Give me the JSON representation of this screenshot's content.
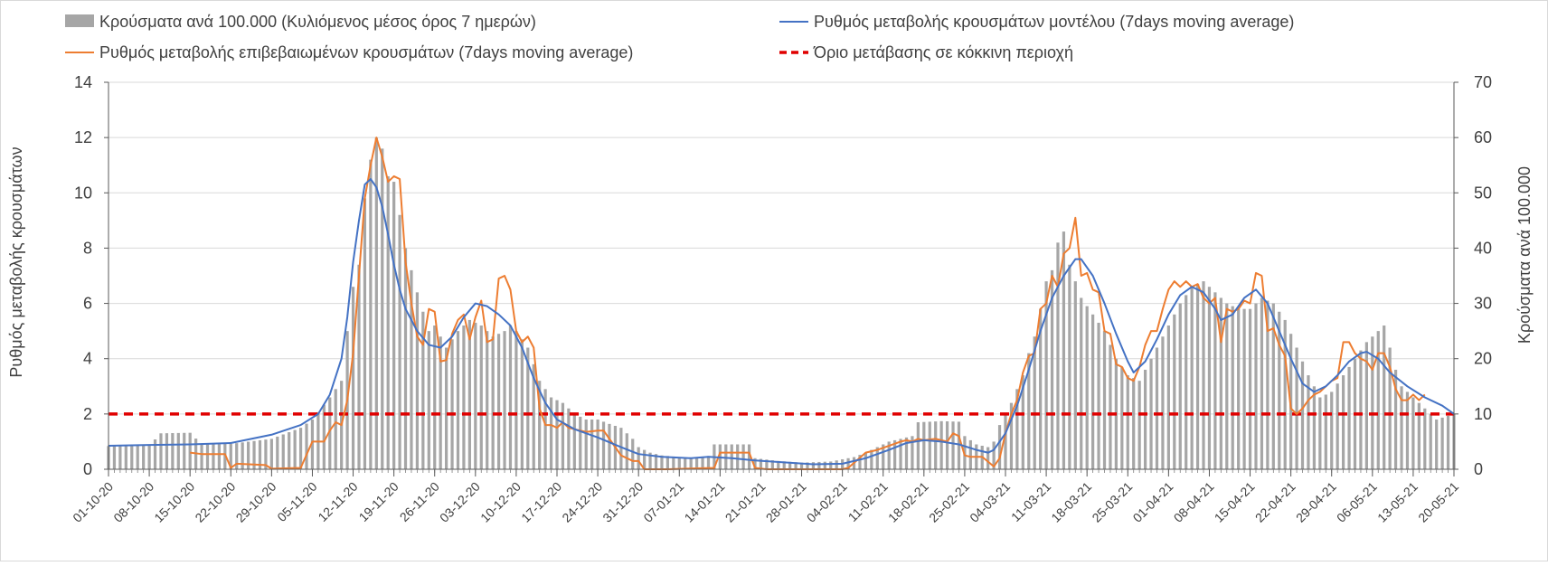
{
  "chart_data": {
    "type": "bar+line",
    "legend": [
      {
        "key": "bars",
        "label": "Κρούσματα ανά 100.000 (Κυλιόμενος μέσος όρος 7 ημερών)",
        "color": "#a6a6a6"
      },
      {
        "key": "model",
        "label": "Ρυθμός μεταβολής κρουσμάτων μοντέλου (7days moving average)",
        "color": "#4472c4"
      },
      {
        "key": "confirmed",
        "label": "Ρυθμός μεταβολής επιβεβαιωμένων κρουσμάτων (7days moving average)",
        "color": "#ed7d31"
      },
      {
        "key": "threshold",
        "label": "Όριο μετάβασης σε κόκκινη περιοχή",
        "color": "#e00000"
      }
    ],
    "ylabel_left": "Ρυθμός μεταβολής κρουσμάτων",
    "ylabel_right": "Κρούσματα ανά 100.000",
    "ylim_left": [
      0,
      14
    ],
    "ylim_right": [
      0,
      70
    ],
    "yticks_left": [
      "0",
      "2",
      "4",
      "6",
      "8",
      "10",
      "12",
      "14"
    ],
    "yticks_right": [
      "0",
      "10",
      "20",
      "30",
      "40",
      "50",
      "60",
      "70"
    ],
    "x_range_days": [
      0,
      231
    ],
    "x_ticks": [
      {
        "day": 0,
        "label": "01-10-20"
      },
      {
        "day": 7,
        "label": "08-10-20"
      },
      {
        "day": 14,
        "label": "15-10-20"
      },
      {
        "day": 21,
        "label": "22-10-20"
      },
      {
        "day": 28,
        "label": "29-10-20"
      },
      {
        "day": 35,
        "label": "05-11-20"
      },
      {
        "day": 42,
        "label": "12-11-20"
      },
      {
        "day": 49,
        "label": "19-11-20"
      },
      {
        "day": 56,
        "label": "26-11-20"
      },
      {
        "day": 63,
        "label": "03-12-20"
      },
      {
        "day": 70,
        "label": "10-12-20"
      },
      {
        "day": 77,
        "label": "17-12-20"
      },
      {
        "day": 84,
        "label": "24-12-20"
      },
      {
        "day": 91,
        "label": "31-12-20"
      },
      {
        "day": 98,
        "label": "07-01-21"
      },
      {
        "day": 105,
        "label": "14-01-21"
      },
      {
        "day": 112,
        "label": "21-01-21"
      },
      {
        "day": 119,
        "label": "28-01-21"
      },
      {
        "day": 126,
        "label": "04-02-21"
      },
      {
        "day": 133,
        "label": "11-02-21"
      },
      {
        "day": 140,
        "label": "18-02-21"
      },
      {
        "day": 147,
        "label": "25-02-21"
      },
      {
        "day": 154,
        "label": "04-03-21"
      },
      {
        "day": 161,
        "label": "11-03-21"
      },
      {
        "day": 168,
        "label": "18-03-21"
      },
      {
        "day": 175,
        "label": "25-03-21"
      },
      {
        "day": 182,
        "label": "01-04-21"
      },
      {
        "day": 189,
        "label": "08-04-21"
      },
      {
        "day": 196,
        "label": "15-04-21"
      },
      {
        "day": 203,
        "label": "22-04-21"
      },
      {
        "day": 210,
        "label": "29-04-21"
      },
      {
        "day": 217,
        "label": "06-05-21"
      },
      {
        "day": 224,
        "label": "13-05-21"
      },
      {
        "day": 231,
        "label": "20-05-21"
      }
    ],
    "threshold": 2,
    "series_bars_per100k": [
      [
        0,
        4.2
      ],
      [
        7,
        4.3
      ],
      [
        9,
        6.5
      ],
      [
        14,
        6.6
      ],
      [
        16,
        4.5
      ],
      [
        21,
        4.6
      ],
      [
        28,
        5.5
      ],
      [
        33,
        7.5
      ],
      [
        35,
        9
      ],
      [
        38,
        13
      ],
      [
        40,
        16
      ],
      [
        41,
        25
      ],
      [
        42,
        33
      ],
      [
        43,
        37
      ],
      [
        44,
        49
      ],
      [
        45,
        56
      ],
      [
        46,
        60
      ],
      [
        47,
        58
      ],
      [
        48,
        53
      ],
      [
        49,
        52
      ],
      [
        51,
        40
      ],
      [
        53,
        32
      ],
      [
        55,
        25
      ],
      [
        56,
        26
      ],
      [
        58,
        22
      ],
      [
        60,
        25
      ],
      [
        62,
        27
      ],
      [
        64,
        26
      ],
      [
        66,
        24
      ],
      [
        68,
        25
      ],
      [
        69,
        26
      ],
      [
        70,
        25
      ],
      [
        72,
        22
      ],
      [
        74,
        16
      ],
      [
        76,
        13
      ],
      [
        78,
        12
      ],
      [
        80,
        10
      ],
      [
        82,
        9
      ],
      [
        84,
        9
      ],
      [
        86,
        8.2
      ],
      [
        88,
        7.5
      ],
      [
        90,
        5.5
      ],
      [
        91,
        4
      ],
      [
        93,
        3
      ],
      [
        95,
        2.5
      ],
      [
        98,
        2.2
      ],
      [
        100,
        2
      ],
      [
        103,
        2.4
      ],
      [
        104,
        4.5
      ],
      [
        110,
        4.5
      ],
      [
        111,
        2
      ],
      [
        115,
        1.5
      ],
      [
        119,
        1.2
      ],
      [
        124,
        1.4
      ],
      [
        126,
        1.8
      ],
      [
        128,
        2.2
      ],
      [
        130,
        3
      ],
      [
        132,
        4
      ],
      [
        134,
        5
      ],
      [
        136,
        5.5
      ],
      [
        138,
        6
      ],
      [
        139,
        8.5
      ],
      [
        143,
        8.7
      ],
      [
        146,
        8.6
      ],
      [
        147,
        6
      ],
      [
        149,
        4.5
      ],
      [
        151,
        4
      ],
      [
        152,
        5
      ],
      [
        153,
        8
      ],
      [
        155,
        12
      ],
      [
        157,
        17
      ],
      [
        158,
        21
      ],
      [
        159,
        24
      ],
      [
        160,
        29
      ],
      [
        161,
        34
      ],
      [
        162,
        36
      ],
      [
        163,
        41
      ],
      [
        164,
        43
      ],
      [
        165,
        37
      ],
      [
        166,
        34
      ],
      [
        167,
        31
      ],
      [
        169,
        28
      ],
      [
        171,
        25
      ],
      [
        173,
        20
      ],
      [
        175,
        17
      ],
      [
        177,
        16
      ],
      [
        178,
        18
      ],
      [
        180,
        22
      ],
      [
        182,
        26
      ],
      [
        184,
        30
      ],
      [
        186,
        33
      ],
      [
        188,
        34
      ],
      [
        190,
        32
      ],
      [
        192,
        30
      ],
      [
        194,
        29
      ],
      [
        196,
        29
      ],
      [
        198,
        31
      ],
      [
        200,
        30
      ],
      [
        202,
        27
      ],
      [
        204,
        22
      ],
      [
        206,
        17
      ],
      [
        208,
        13
      ],
      [
        210,
        14
      ],
      [
        212,
        17
      ],
      [
        214,
        20
      ],
      [
        216,
        23
      ],
      [
        218,
        25
      ],
      [
        219,
        26
      ],
      [
        220,
        22
      ],
      [
        221,
        18
      ],
      [
        222,
        15
      ],
      [
        224,
        13
      ],
      [
        226,
        11
      ],
      [
        228,
        9
      ],
      [
        231,
        10
      ]
    ],
    "series_model_rate": [
      [
        0,
        0.85
      ],
      [
        7,
        0.88
      ],
      [
        14,
        0.9
      ],
      [
        21,
        0.95
      ],
      [
        28,
        1.25
      ],
      [
        33,
        1.6
      ],
      [
        36,
        2.0
      ],
      [
        38,
        2.7
      ],
      [
        40,
        4.0
      ],
      [
        41,
        5.5
      ],
      [
        42,
        7.5
      ],
      [
        43,
        9.0
      ],
      [
        44,
        10.3
      ],
      [
        45,
        10.5
      ],
      [
        46,
        10.2
      ],
      [
        47,
        9.5
      ],
      [
        48,
        8.5
      ],
      [
        49,
        7.4
      ],
      [
        50,
        6.5
      ],
      [
        51,
        5.8
      ],
      [
        53,
        5.0
      ],
      [
        55,
        4.5
      ],
      [
        57,
        4.4
      ],
      [
        59,
        4.8
      ],
      [
        61,
        5.5
      ],
      [
        63,
        6.0
      ],
      [
        65,
        5.9
      ],
      [
        67,
        5.6
      ],
      [
        69,
        5.2
      ],
      [
        71,
        4.4
      ],
      [
        73,
        3.3
      ],
      [
        75,
        2.4
      ],
      [
        77,
        1.8
      ],
      [
        80,
        1.45
      ],
      [
        84,
        1.15
      ],
      [
        88,
        0.8
      ],
      [
        91,
        0.55
      ],
      [
        95,
        0.45
      ],
      [
        100,
        0.4
      ],
      [
        103,
        0.45
      ],
      [
        107,
        0.4
      ],
      [
        111,
        0.32
      ],
      [
        116,
        0.25
      ],
      [
        121,
        0.18
      ],
      [
        126,
        0.2
      ],
      [
        130,
        0.4
      ],
      [
        134,
        0.7
      ],
      [
        137,
        0.95
      ],
      [
        140,
        1.05
      ],
      [
        143,
        1.0
      ],
      [
        146,
        0.9
      ],
      [
        149,
        0.7
      ],
      [
        151,
        0.6
      ],
      [
        152,
        0.7
      ],
      [
        154,
        1.3
      ],
      [
        156,
        2.3
      ],
      [
        158,
        3.6
      ],
      [
        160,
        5.0
      ],
      [
        162,
        6.2
      ],
      [
        164,
        7.0
      ],
      [
        166,
        7.6
      ],
      [
        167,
        7.6
      ],
      [
        169,
        7.0
      ],
      [
        171,
        6.0
      ],
      [
        173,
        4.9
      ],
      [
        175,
        3.9
      ],
      [
        176,
        3.5
      ],
      [
        178,
        3.9
      ],
      [
        180,
        4.7
      ],
      [
        182,
        5.6
      ],
      [
        184,
        6.3
      ],
      [
        186,
        6.6
      ],
      [
        188,
        6.4
      ],
      [
        190,
        5.8
      ],
      [
        191,
        5.4
      ],
      [
        193,
        5.6
      ],
      [
        195,
        6.2
      ],
      [
        197,
        6.5
      ],
      [
        199,
        6.0
      ],
      [
        201,
        5.0
      ],
      [
        203,
        4.0
      ],
      [
        205,
        3.1
      ],
      [
        207,
        2.8
      ],
      [
        209,
        3.0
      ],
      [
        211,
        3.4
      ],
      [
        213,
        3.9
      ],
      [
        215,
        4.2
      ],
      [
        216,
        4.25
      ],
      [
        218,
        4.0
      ],
      [
        220,
        3.5
      ],
      [
        223,
        3.0
      ],
      [
        226,
        2.6
      ],
      [
        229,
        2.3
      ],
      [
        231,
        2.0
      ]
    ],
    "series_confirmed_rate": [
      [
        14,
        0.6
      ],
      [
        16,
        0.55
      ],
      [
        17,
        0.55
      ],
      [
        20,
        0.55
      ],
      [
        21,
        0.05
      ],
      [
        22,
        0.2
      ],
      [
        27,
        0.15
      ],
      [
        28,
        0.02
      ],
      [
        33,
        0.05
      ],
      [
        35,
        1.0
      ],
      [
        36,
        1.0
      ],
      [
        37,
        1.0
      ],
      [
        38,
        1.4
      ],
      [
        39,
        1.7
      ],
      [
        40,
        1.6
      ],
      [
        41,
        2.5
      ],
      [
        42,
        4.2
      ],
      [
        43,
        7.0
      ],
      [
        44,
        9.8
      ],
      [
        45,
        11.0
      ],
      [
        46,
        12.0
      ],
      [
        47,
        11.3
      ],
      [
        48,
        10.4
      ],
      [
        49,
        10.6
      ],
      [
        50,
        10.5
      ],
      [
        51,
        7.5
      ],
      [
        52,
        6.0
      ],
      [
        53,
        4.8
      ],
      [
        54,
        4.5
      ],
      [
        55,
        5.8
      ],
      [
        56,
        5.7
      ],
      [
        57,
        3.9
      ],
      [
        58,
        3.95
      ],
      [
        59,
        4.9
      ],
      [
        60,
        5.4
      ],
      [
        61,
        5.6
      ],
      [
        62,
        4.7
      ],
      [
        63,
        5.5
      ],
      [
        64,
        6.1
      ],
      [
        65,
        4.6
      ],
      [
        66,
        4.7
      ],
      [
        67,
        6.9
      ],
      [
        68,
        7.0
      ],
      [
        69,
        6.5
      ],
      [
        70,
        5.0
      ],
      [
        71,
        4.6
      ],
      [
        72,
        4.8
      ],
      [
        73,
        4.4
      ],
      [
        74,
        2.2
      ],
      [
        75,
        1.6
      ],
      [
        76,
        1.6
      ],
      [
        77,
        1.5
      ],
      [
        78,
        1.7
      ],
      [
        79,
        1.5
      ],
      [
        80,
        1.45
      ],
      [
        82,
        1.35
      ],
      [
        84,
        1.4
      ],
      [
        85,
        1.4
      ],
      [
        86,
        1.1
      ],
      [
        88,
        0.5
      ],
      [
        90,
        0.3
      ],
      [
        91,
        0.3
      ],
      [
        92,
        0.0
      ],
      [
        93,
        0.0
      ],
      [
        96,
        0.0
      ],
      [
        104,
        0.05
      ],
      [
        105,
        0.6
      ],
      [
        110,
        0.6
      ],
      [
        111,
        0.05
      ],
      [
        113,
        0.0
      ],
      [
        124,
        0.0
      ],
      [
        126,
        0.0
      ],
      [
        127,
        0.05
      ],
      [
        130,
        0.6
      ],
      [
        132,
        0.7
      ],
      [
        134,
        0.85
      ],
      [
        136,
        1.0
      ],
      [
        137,
        1.05
      ],
      [
        138,
        1.0
      ],
      [
        139,
        1.1
      ],
      [
        140,
        1.05
      ],
      [
        142,
        1.1
      ],
      [
        144,
        1.0
      ],
      [
        145,
        1.3
      ],
      [
        146,
        1.2
      ],
      [
        147,
        0.5
      ],
      [
        148,
        0.45
      ],
      [
        150,
        0.45
      ],
      [
        152,
        0.1
      ],
      [
        153,
        0.4
      ],
      [
        154,
        1.3
      ],
      [
        155,
        2.0
      ],
      [
        156,
        2.5
      ],
      [
        157,
        3.5
      ],
      [
        158,
        4.1
      ],
      [
        159,
        4.2
      ],
      [
        160,
        5.8
      ],
      [
        161,
        6.0
      ],
      [
        162,
        7.0
      ],
      [
        163,
        6.6
      ],
      [
        164,
        7.8
      ],
      [
        165,
        8.0
      ],
      [
        166,
        9.1
      ],
      [
        167,
        7.0
      ],
      [
        168,
        7.1
      ],
      [
        169,
        6.5
      ],
      [
        170,
        6.4
      ],
      [
        171,
        5.0
      ],
      [
        172,
        4.9
      ],
      [
        173,
        3.8
      ],
      [
        174,
        3.7
      ],
      [
        175,
        3.3
      ],
      [
        176,
        3.2
      ],
      [
        177,
        3.7
      ],
      [
        178,
        4.5
      ],
      [
        179,
        5.0
      ],
      [
        180,
        5.0
      ],
      [
        181,
        5.8
      ],
      [
        182,
        6.5
      ],
      [
        183,
        6.8
      ],
      [
        184,
        6.6
      ],
      [
        185,
        6.8
      ],
      [
        186,
        6.6
      ],
      [
        187,
        6.7
      ],
      [
        188,
        6.2
      ],
      [
        189,
        6.0
      ],
      [
        190,
        6.2
      ],
      [
        191,
        4.6
      ],
      [
        192,
        5.8
      ],
      [
        193,
        5.7
      ],
      [
        194,
        5.8
      ],
      [
        195,
        6.1
      ],
      [
        196,
        6.0
      ],
      [
        197,
        7.1
      ],
      [
        198,
        7.0
      ],
      [
        199,
        5.0
      ],
      [
        200,
        5.1
      ],
      [
        201,
        4.5
      ],
      [
        202,
        4.1
      ],
      [
        203,
        2.2
      ],
      [
        204,
        2.0
      ],
      [
        205,
        2.2
      ],
      [
        206,
        2.5
      ],
      [
        207,
        2.7
      ],
      [
        208,
        2.8
      ],
      [
        209,
        3.0
      ],
      [
        210,
        3.2
      ],
      [
        211,
        3.3
      ],
      [
        212,
        4.6
      ],
      [
        213,
        4.6
      ],
      [
        214,
        4.2
      ],
      [
        215,
        4.0
      ],
      [
        216,
        3.9
      ],
      [
        217,
        3.6
      ],
      [
        218,
        4.2
      ],
      [
        219,
        4.2
      ],
      [
        220,
        3.7
      ],
      [
        221,
        2.9
      ],
      [
        222,
        2.5
      ],
      [
        223,
        2.5
      ],
      [
        224,
        2.7
      ],
      [
        225,
        2.5
      ],
      [
        226,
        2.7
      ]
    ]
  }
}
